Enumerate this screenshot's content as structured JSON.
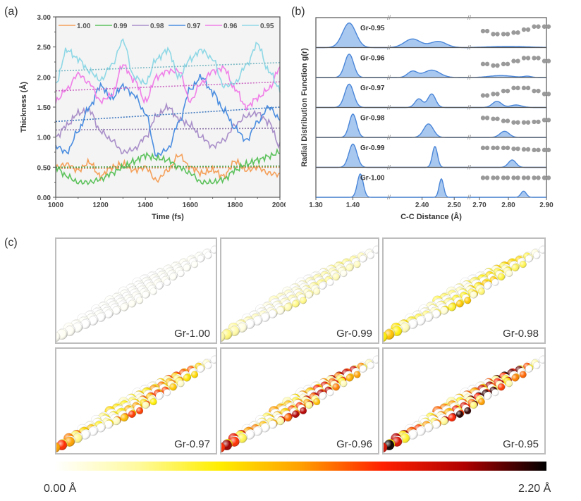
{
  "panels": {
    "a": "(a)",
    "b": "(b)",
    "c": "(c)"
  },
  "chart_data": [
    {
      "id": "a",
      "type": "line",
      "title": "",
      "xlabel": "Time (fs)",
      "ylabel": "Thickness (Å)",
      "xlim": [
        1000,
        2000
      ],
      "ylim": [
        0.0,
        3.0
      ],
      "xticks": [
        1000,
        1200,
        1400,
        1600,
        1800,
        2000
      ],
      "yticks": [
        "0.00",
        "0.50",
        "1.00",
        "1.50",
        "2.00",
        "2.50",
        "3.00"
      ],
      "legend_position": "top",
      "grid": false,
      "x": [
        1000,
        1050,
        1100,
        1150,
        1200,
        1250,
        1300,
        1350,
        1400,
        1450,
        1500,
        1550,
        1600,
        1650,
        1700,
        1750,
        1800,
        1850,
        1900,
        1950,
        2000
      ],
      "series": [
        {
          "name": "1.00",
          "color": "#f5a05a",
          "values": [
            0.5,
            0.55,
            0.45,
            0.58,
            0.35,
            0.5,
            0.55,
            0.45,
            0.5,
            0.28,
            0.45,
            0.7,
            0.5,
            0.4,
            0.45,
            0.35,
            0.6,
            0.45,
            0.5,
            0.4,
            0.38
          ],
          "trend": [
            0.48,
            0.5
          ]
        },
        {
          "name": "0.99",
          "color": "#5cc25c",
          "values": [
            0.5,
            0.35,
            0.25,
            0.25,
            0.3,
            0.4,
            0.5,
            0.6,
            0.7,
            0.65,
            0.62,
            0.5,
            0.4,
            0.25,
            0.25,
            0.3,
            0.45,
            0.55,
            0.62,
            0.68,
            0.75
          ],
          "trend": [
            0.5,
            0.52
          ]
        },
        {
          "name": "0.98",
          "color": "#a98fc9",
          "values": [
            1.0,
            1.2,
            1.4,
            1.45,
            1.1,
            0.95,
            0.75,
            0.8,
            1.0,
            1.35,
            1.5,
            1.3,
            1.2,
            1.0,
            0.85,
            0.95,
            1.2,
            1.35,
            1.4,
            1.25,
            0.85
          ],
          "trend": [
            1.12,
            1.15
          ]
        },
        {
          "name": "0.97",
          "color": "#4a8de0",
          "values": [
            0.85,
            0.75,
            1.1,
            1.5,
            1.85,
            1.65,
            1.85,
            1.7,
            1.4,
            0.7,
            0.8,
            1.25,
            1.8,
            2.0,
            1.75,
            1.45,
            1.15,
            0.95,
            1.25,
            1.5,
            1.3
          ],
          "trend": [
            1.26,
            1.5
          ]
        },
        {
          "name": "0.96",
          "color": "#f07fe8",
          "values": [
            1.6,
            1.8,
            2.05,
            1.9,
            1.6,
            1.7,
            2.2,
            1.95,
            1.6,
            2.0,
            2.1,
            2.1,
            1.6,
            1.9,
            2.1,
            2.15,
            1.8,
            1.5,
            1.65,
            1.8,
            2.15
          ],
          "trend": [
            1.77,
            1.92
          ]
        },
        {
          "name": "0.95",
          "color": "#8fd8e6",
          "values": [
            1.9,
            2.45,
            2.3,
            2.1,
            1.95,
            2.2,
            2.6,
            2.0,
            1.9,
            2.3,
            2.45,
            2.0,
            2.3,
            2.45,
            2.3,
            1.85,
            1.9,
            2.2,
            2.55,
            2.1,
            1.8
          ],
          "trend": [
            2.1,
            2.24
          ]
        }
      ]
    },
    {
      "id": "b",
      "type": "area",
      "title": "",
      "xlabel": "C-C Distance (Å)",
      "ylabel": "Radial Distribution Function g(r)",
      "broken_axis_segments": [
        [
          1.3,
          1.5
        ],
        [
          2.3,
          2.55
        ],
        [
          2.7,
          2.9
        ]
      ],
      "xticks": [
        "1.30",
        "1.40",
        "2.40",
        "2.50",
        "2.70",
        "2.80",
        "2.90"
      ],
      "fill_color": "#a9c8f0",
      "line_color": "#4a86d8",
      "marker_color": "#9a9a9a",
      "series": [
        {
          "name": "Gr-0.95",
          "peaks": [
            [
              1.39,
              1.0,
              0.018
            ],
            [
              2.37,
              0.35,
              0.025
            ],
            [
              2.45,
              0.25,
              0.025
            ],
            [
              2.8,
              0.05,
              0.05
            ]
          ],
          "markers": [
            0.55,
            0.45,
            0.45,
            0.5,
            0.6,
            0.7,
            0.7
          ]
        },
        {
          "name": "Gr-0.96",
          "peaks": [
            [
              1.39,
              0.95,
              0.012
            ],
            [
              2.37,
              0.25,
              0.015
            ],
            [
              2.43,
              0.3,
              0.025
            ],
            [
              2.78,
              0.08,
              0.03
            ],
            [
              2.85,
              0.05,
              0.01
            ]
          ],
          "markers": [
            0.45,
            0.4,
            0.45,
            0.55,
            0.65,
            0.65,
            0.55
          ]
        },
        {
          "name": "Gr-0.97",
          "peaks": [
            [
              1.39,
              0.95,
              0.012
            ],
            [
              2.39,
              0.35,
              0.012
            ],
            [
              2.43,
              0.55,
              0.012
            ],
            [
              2.77,
              0.25,
              0.012
            ],
            [
              2.82,
              0.1,
              0.015
            ]
          ],
          "markers": [
            0.4,
            0.45,
            0.55,
            0.65,
            0.65,
            0.55,
            0.45
          ]
        },
        {
          "name": "Gr-0.98",
          "peaks": [
            [
              1.4,
              0.95,
              0.01
            ],
            [
              2.42,
              0.55,
              0.015
            ],
            [
              2.79,
              0.25,
              0.012
            ]
          ],
          "markers": [
            0.65,
            0.62,
            0.55,
            0.5,
            0.5,
            0.52,
            0.58
          ]
        },
        {
          "name": "Gr-0.99",
          "peaks": [
            [
              1.4,
              0.95,
              0.011
            ],
            [
              2.44,
              0.85,
              0.008
            ],
            [
              2.81,
              0.3,
              0.01
            ]
          ],
          "markers": [
            0.65,
            0.65,
            0.65,
            0.62,
            0.6,
            0.58,
            0.58
          ]
        },
        {
          "name": "Gr-1.00",
          "peaks": [
            [
              1.42,
              0.95,
              0.008
            ],
            [
              2.46,
              0.75,
              0.007
            ],
            [
              2.84,
              0.25,
              0.007
            ]
          ],
          "markers": [
            0.65,
            0.65,
            0.65,
            0.65,
            0.65,
            0.65,
            0.65
          ]
        }
      ]
    },
    {
      "id": "c",
      "type": "heatmap",
      "title": "",
      "colorbar": {
        "min_label": "0.00 Å",
        "max_label": "2.20 Å",
        "min": 0.0,
        "max": 2.2,
        "stops": [
          "#ffffff",
          "#fffaa0",
          "#ffee00",
          "#ffa000",
          "#ff2000",
          "#b00000",
          "#000000"
        ]
      },
      "panels": [
        {
          "label": "Gr-1.00",
          "max_displacement": 0.05
        },
        {
          "label": "Gr-0.99",
          "max_displacement": 0.45
        },
        {
          "label": "Gr-0.98",
          "max_displacement": 0.95
        },
        {
          "label": "Gr-0.97",
          "max_displacement": 1.45
        },
        {
          "label": "Gr-0.96",
          "max_displacement": 1.9
        },
        {
          "label": "Gr-0.95",
          "max_displacement": 2.2
        }
      ]
    }
  ]
}
